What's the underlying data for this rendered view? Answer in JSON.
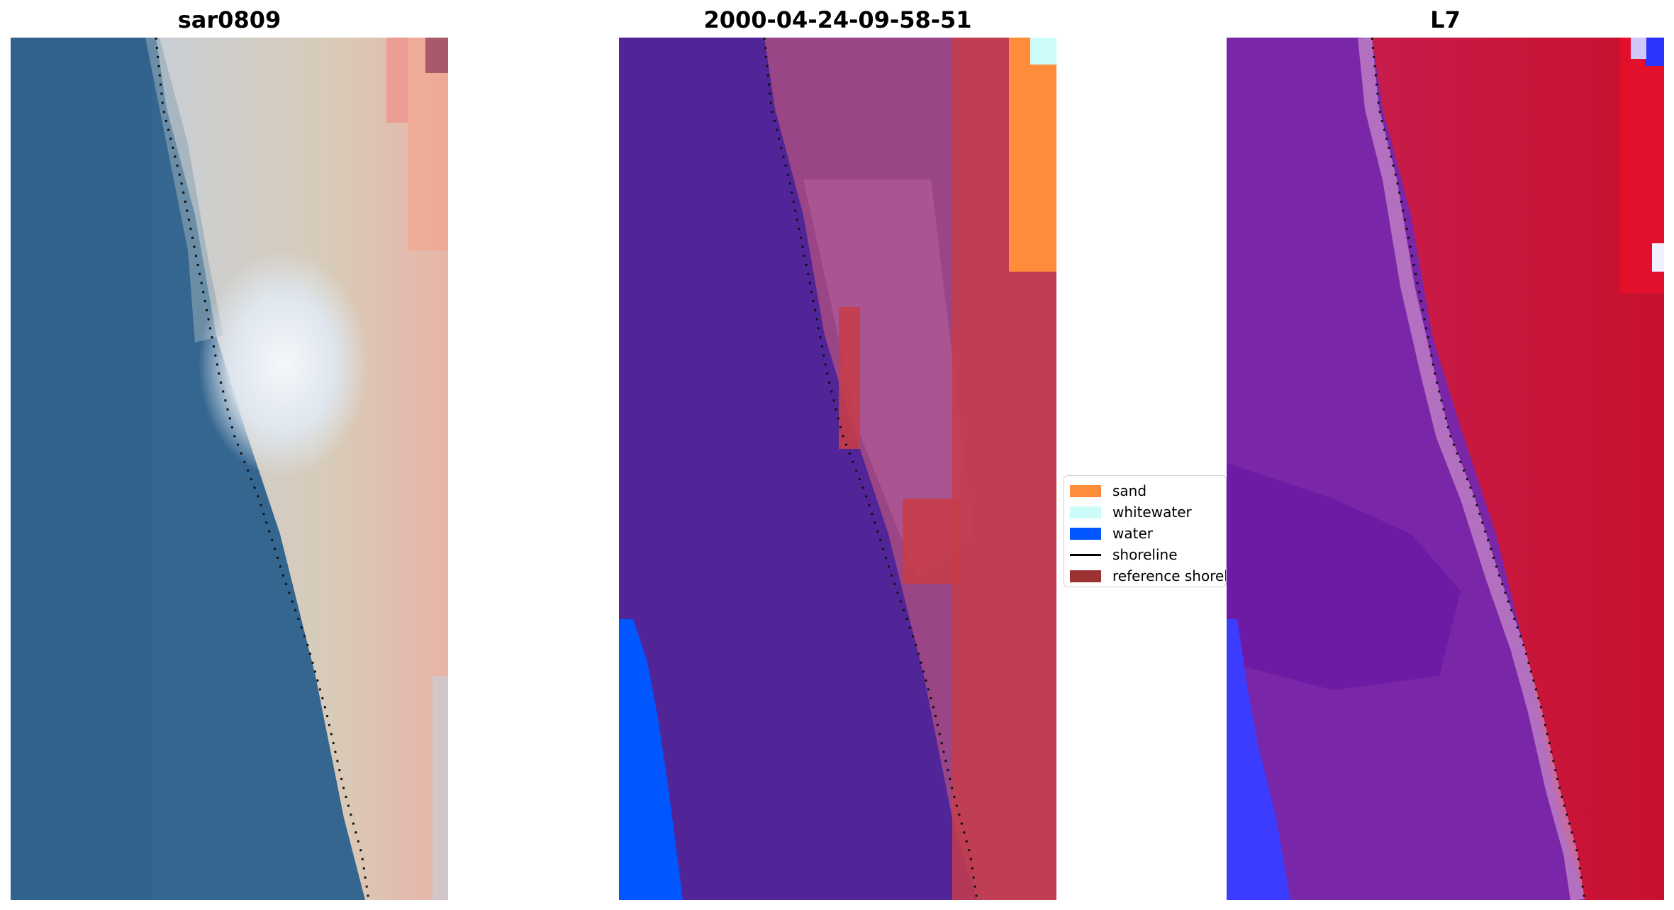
{
  "panels": [
    {
      "title": "sar0809",
      "image": "rgb satellite image of coastline with dotted shoreline"
    },
    {
      "title": "2000-04-24-09-58-51",
      "image": "classified image with sand, whitewater, water and reference shoreline"
    },
    {
      "title": "L7",
      "image": "water index image with blue-purple-red colormap and dotted shoreline"
    }
  ],
  "legend": {
    "items": [
      {
        "label": "sand",
        "color": "#ff8c3a"
      },
      {
        "label": "whitewater",
        "color": "#ccfcf9"
      },
      {
        "label": "water",
        "color": "#0057ff"
      },
      {
        "label": "shoreline",
        "color": "#000000"
      },
      {
        "label": "reference shoreline",
        "color": "#9b3333"
      }
    ]
  }
}
